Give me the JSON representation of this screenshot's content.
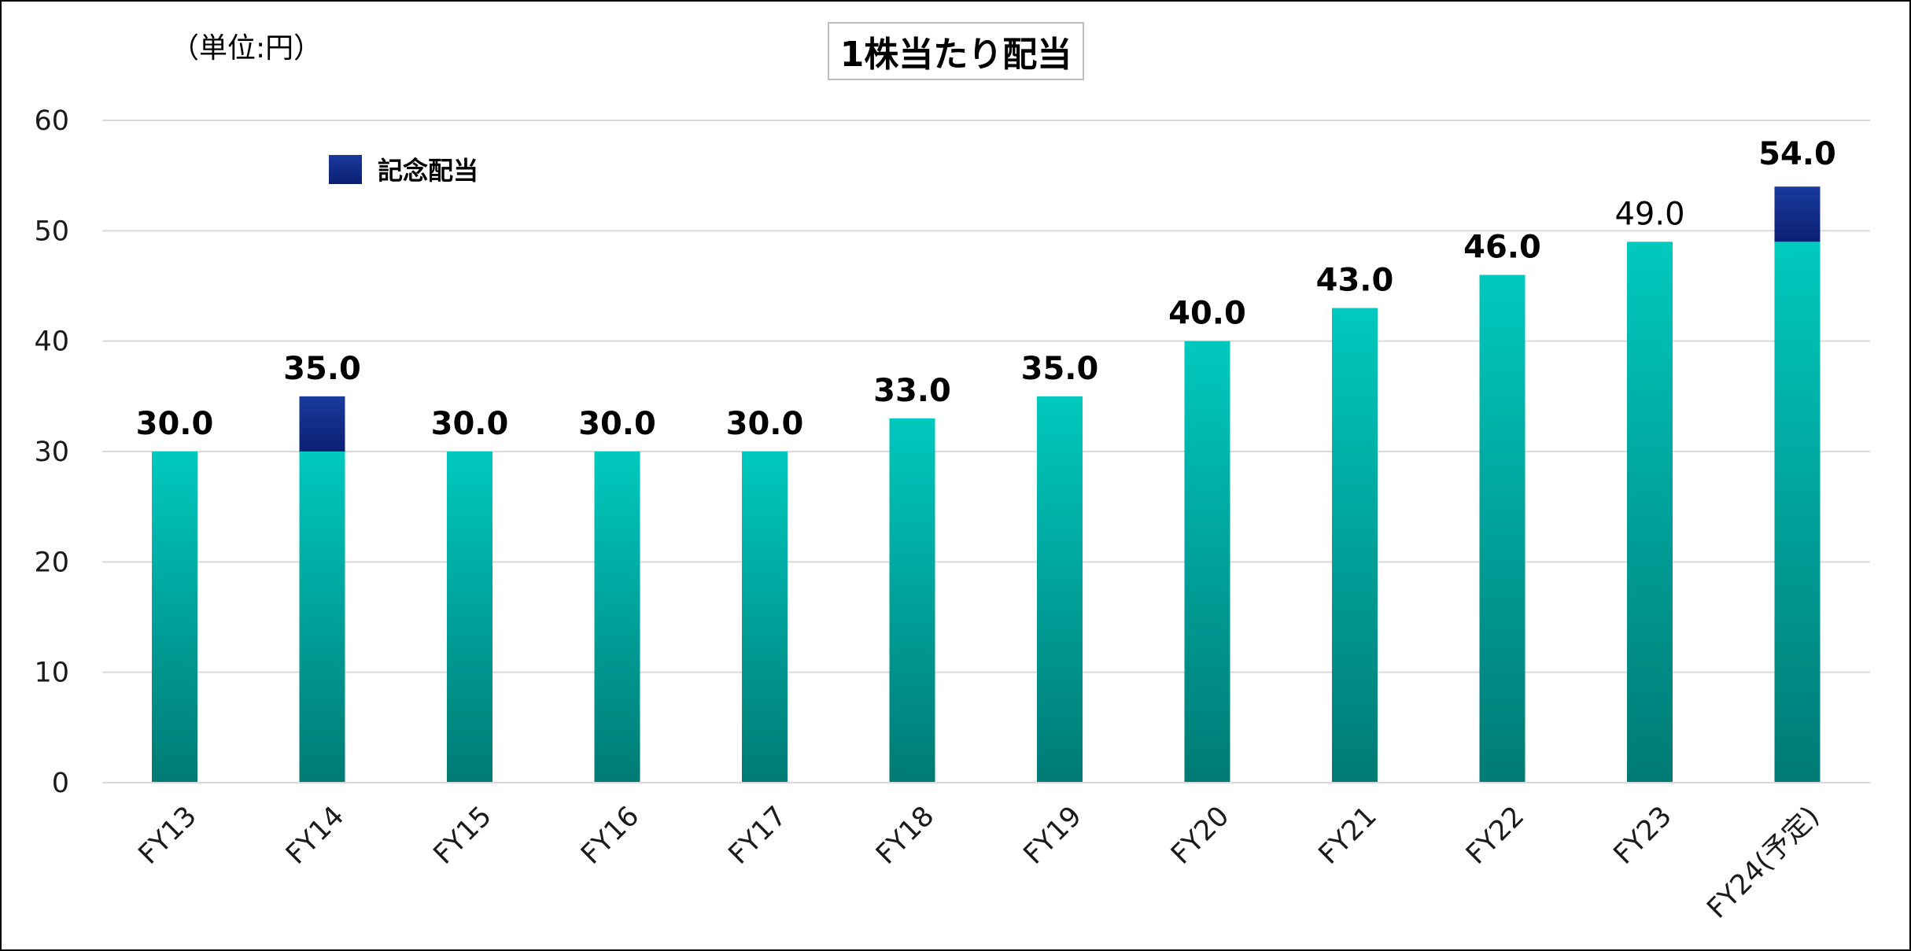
{
  "chart_data": {
    "type": "bar",
    "title": "1株当たり配当",
    "unit": "（単位:円）",
    "categories": [
      "FY13",
      "FY14",
      "FY15",
      "FY16",
      "FY17",
      "FY18",
      "FY19",
      "FY20",
      "FY21",
      "FY22",
      "FY23",
      "FY24(予定)"
    ],
    "series": [
      {
        "values": [
          30,
          30,
          30,
          30,
          30,
          33,
          35,
          40,
          43,
          46,
          49,
          49
        ],
        "color_top": "#00c9be",
        "color_bottom": "#007a75"
      },
      {
        "name": "記念配当",
        "values": [
          0,
          5,
          0,
          0,
          0,
          0,
          0,
          0,
          0,
          0,
          0,
          5
        ],
        "color_top": "#1a3a9c",
        "color_bottom": "#0b1f73"
      }
    ],
    "totals": [
      "30.0",
      "35.0",
      "30.0",
      "30.0",
      "30.0",
      "33.0",
      "35.0",
      "40.0",
      "43.0",
      "46.0",
      "49.0",
      "54.0"
    ],
    "label_styles": [
      "bold",
      "bold",
      "bold",
      "bold",
      "bold",
      "bold",
      "bold",
      "bold",
      "bold",
      "bold",
      "normal",
      "bold-large"
    ],
    "yticks": [
      "0",
      "10",
      "20",
      "30",
      "40",
      "50",
      "60"
    ],
    "ylim": [
      0,
      60
    ],
    "grid": true,
    "grid_color": "#d9d9d9",
    "legend_position": "top-left"
  }
}
